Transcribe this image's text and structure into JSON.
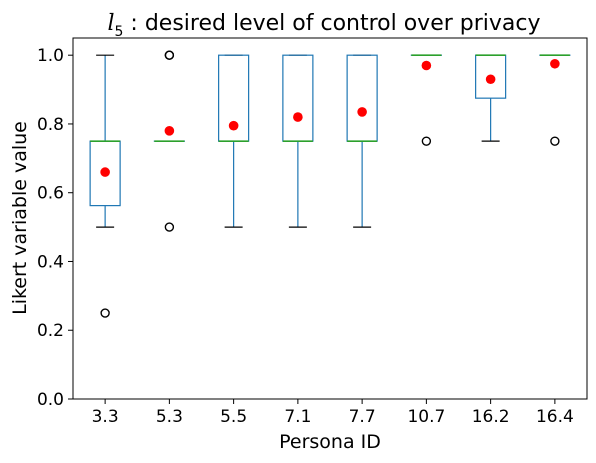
{
  "chart_data": {
    "type": "box",
    "title": {
      "variable": "l",
      "subscript": "5",
      "text": " : desired level of control over privacy"
    },
    "xlabel": "Persona ID",
    "ylabel": "Likert variable value",
    "ylim": [
      0.0,
      1.05
    ],
    "yticks": [
      "0.0",
      "0.2",
      "0.4",
      "0.6",
      "0.8",
      "1.0"
    ],
    "categories": [
      "3.3",
      "5.3",
      "5.5",
      "7.1",
      "7.7",
      "10.7",
      "16.2",
      "16.4"
    ],
    "boxes": [
      {
        "category": "3.3",
        "whisker_low": 0.5,
        "q1": 0.5625,
        "median": 0.75,
        "q3": 0.75,
        "whisker_high": 1.0,
        "mean": 0.66,
        "outliers": [
          0.25
        ]
      },
      {
        "category": "5.3",
        "whisker_low": 0.75,
        "q1": 0.75,
        "median": 0.75,
        "q3": 0.75,
        "whisker_high": 0.75,
        "mean": 0.78,
        "outliers": [
          0.5,
          1.0,
          1.0
        ]
      },
      {
        "category": "5.5",
        "whisker_low": 0.5,
        "q1": 0.75,
        "median": 0.75,
        "q3": 1.0,
        "whisker_high": 1.0,
        "mean": 0.795,
        "outliers": []
      },
      {
        "category": "7.1",
        "whisker_low": 0.5,
        "q1": 0.75,
        "median": 0.75,
        "q3": 1.0,
        "whisker_high": 1.0,
        "mean": 0.82,
        "outliers": []
      },
      {
        "category": "7.7",
        "whisker_low": 0.5,
        "q1": 0.75,
        "median": 0.75,
        "q3": 1.0,
        "whisker_high": 1.0,
        "mean": 0.835,
        "outliers": []
      },
      {
        "category": "10.7",
        "whisker_low": 1.0,
        "q1": 1.0,
        "median": 1.0,
        "q3": 1.0,
        "whisker_high": 1.0,
        "mean": 0.97,
        "outliers": [
          0.75
        ]
      },
      {
        "category": "16.2",
        "whisker_low": 0.75,
        "q1": 0.875,
        "median": 1.0,
        "q3": 1.0,
        "whisker_high": 1.0,
        "mean": 0.93,
        "outliers": []
      },
      {
        "category": "16.4",
        "whisker_low": 1.0,
        "q1": 1.0,
        "median": 1.0,
        "q3": 1.0,
        "whisker_high": 1.0,
        "mean": 0.975,
        "outliers": [
          0.75
        ]
      }
    ],
    "colors": {
      "box": "#1f77b4",
      "median": "#2ca02c",
      "whisker_cap": "#000000",
      "mean": "#ff0000",
      "outlier": "#000000"
    },
    "grid": false,
    "legend": "none"
  }
}
